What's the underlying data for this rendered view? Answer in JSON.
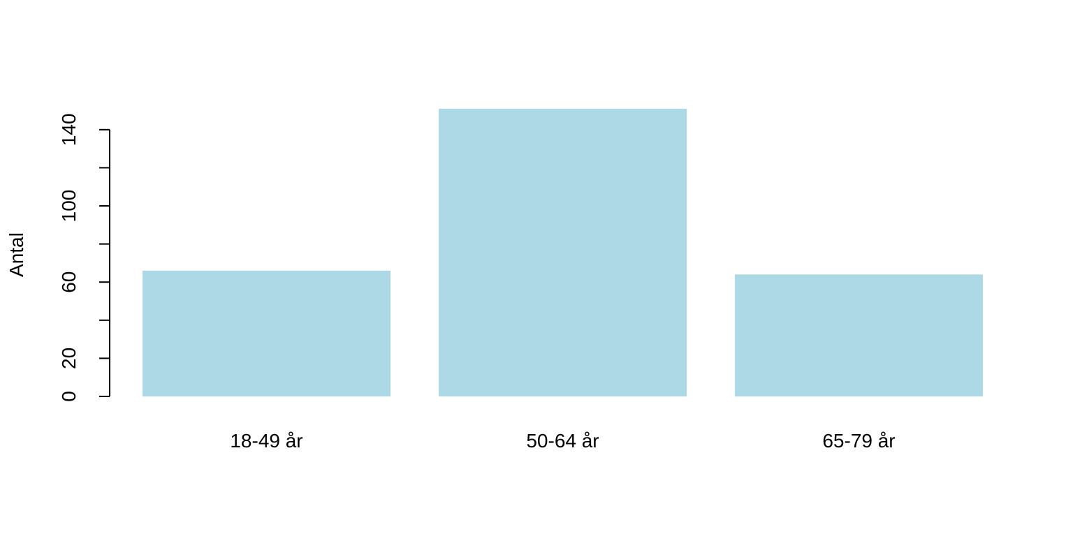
{
  "chart_data": {
    "type": "bar",
    "categories": [
      "18-49 år",
      "50-64 år",
      "65-79 år"
    ],
    "values": [
      66,
      151,
      64
    ],
    "title": "",
    "xlabel": "",
    "ylabel": "Antal",
    "ylim": [
      0,
      140
    ],
    "yticks": [
      0,
      20,
      60,
      100,
      140
    ],
    "yticks_minor": [
      40,
      80,
      120
    ],
    "bar_color": "#ADD8E6",
    "grid": false
  }
}
